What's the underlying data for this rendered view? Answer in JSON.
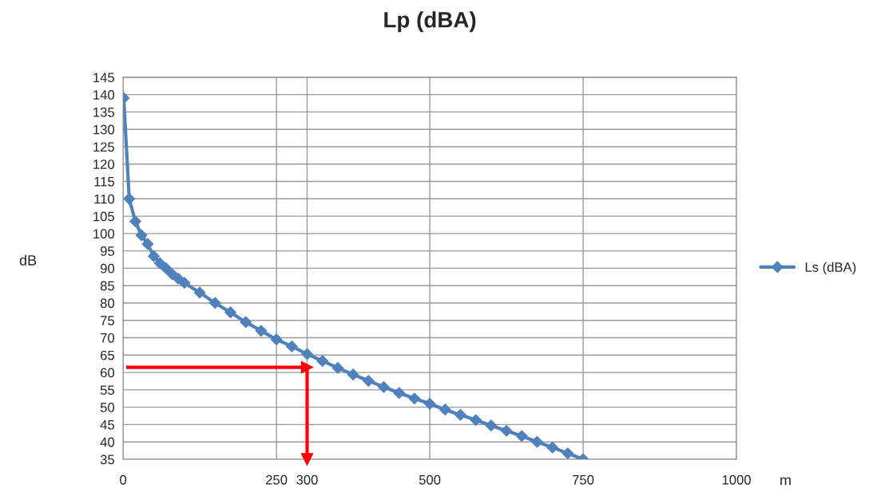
{
  "chart_data": {
    "type": "line",
    "title": "Lp (dBA)",
    "xlabel": "m",
    "ylabel": "dB",
    "x": [
      1,
      10,
      20,
      30,
      40,
      50,
      60,
      70,
      80,
      90,
      100,
      125,
      150,
      175,
      200,
      225,
      250,
      275,
      300,
      325,
      350,
      375,
      400,
      425,
      450,
      475,
      500,
      525,
      550,
      575,
      600,
      625,
      650,
      675,
      700,
      725,
      750
    ],
    "series": [
      {
        "name": "Ls (dBA)",
        "color": "#4f81bd",
        "values": [
          139,
          110,
          103.5,
          99.5,
          97,
          93.5,
          91.5,
          90,
          88.3,
          87,
          85.8,
          83,
          80,
          77.3,
          74.5,
          72,
          69.5,
          67.5,
          65.3,
          63.3,
          61.3,
          59.4,
          57.6,
          55.8,
          54.1,
          52.5,
          51,
          49.3,
          47.8,
          46.3,
          44.7,
          43.2,
          41.7,
          40,
          38.4,
          36.7,
          35
        ]
      }
    ],
    "xlim": [
      0,
      1000
    ],
    "xticks": [
      0,
      250,
      300,
      500,
      750,
      1000
    ],
    "ylim": [
      35,
      145
    ],
    "yticks": [
      35,
      40,
      45,
      50,
      55,
      60,
      65,
      70,
      75,
      80,
      85,
      90,
      95,
      100,
      105,
      110,
      115,
      120,
      125,
      130,
      135,
      140,
      145
    ],
    "grid": true,
    "legend": "right",
    "marker": "diamond",
    "line_style": "solid",
    "ref_lines": [
      {
        "axis": "y",
        "value": 61.5,
        "color": "#ff0000"
      },
      {
        "axis": "x",
        "value": 300,
        "color": "#ff0000"
      }
    ]
  }
}
